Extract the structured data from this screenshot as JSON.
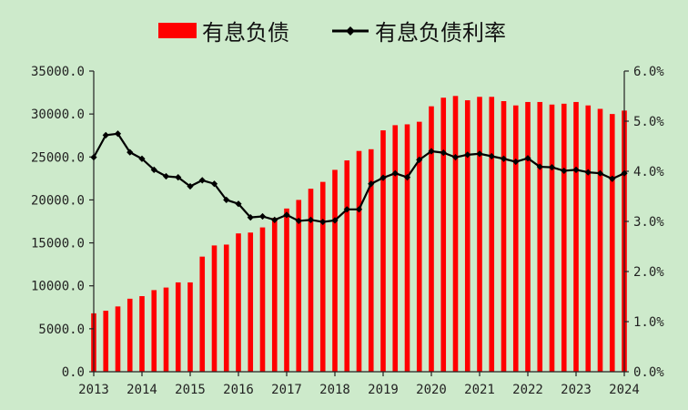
{
  "chart_data": {
    "type": "bar",
    "combo": "bar + line (dual axis)",
    "title": "",
    "xlabel": "",
    "ylabel": "",
    "legend": {
      "placement": "top-center",
      "entries": [
        {
          "name": "有息负债",
          "kind": "bar",
          "color": "#ff0000"
        },
        {
          "name": "有息负债利率",
          "kind": "line-with-diamond-markers",
          "color": "#000000"
        }
      ]
    },
    "grid": false,
    "x_tick_labels": [
      "2013",
      "2014",
      "2015",
      "2016",
      "2017",
      "2018",
      "2019",
      "2020",
      "2021",
      "2022",
      "2023",
      "2024"
    ],
    "x_range": [
      2013,
      2024
    ],
    "left_axis": {
      "ylim": [
        0,
        35000
      ],
      "tick_values": [
        0,
        5000,
        10000,
        15000,
        20000,
        25000,
        30000,
        35000
      ],
      "tick_labels": [
        "0.0",
        "5000.0",
        "10000.0",
        "15000.0",
        "20000.0",
        "25000.0",
        "30000.0",
        "35000.0"
      ]
    },
    "right_axis": {
      "ylim": [
        0,
        6
      ],
      "tick_values": [
        0,
        1,
        2,
        3,
        4,
        5,
        6
      ],
      "tick_labels": [
        "0.0%",
        "1.0%",
        "2.0%",
        "3.0%",
        "4.0%",
        "5.0%",
        "6.0%"
      ]
    },
    "x": [
      2013.0,
      2013.25,
      2013.5,
      2013.75,
      2014.0,
      2014.25,
      2014.5,
      2014.75,
      2015.0,
      2015.25,
      2015.5,
      2015.75,
      2016.0,
      2016.25,
      2016.5,
      2016.75,
      2017.0,
      2017.25,
      2017.5,
      2017.75,
      2018.0,
      2018.25,
      2018.5,
      2018.75,
      2019.0,
      2019.25,
      2019.5,
      2019.75,
      2020.0,
      2020.25,
      2020.5,
      2020.75,
      2021.0,
      2021.25,
      2021.5,
      2021.75,
      2022.0,
      2022.25,
      2022.5,
      2022.75,
      2023.0,
      2023.25,
      2023.5,
      2023.75,
      2024.0
    ],
    "series": [
      {
        "name": "有息负债",
        "type": "bar",
        "axis": "left",
        "color": "#ff0000",
        "values": [
          6800,
          7100,
          7600,
          8500,
          8800,
          9500,
          9800,
          10400,
          10400,
          13400,
          14700,
          14800,
          16100,
          16200,
          16800,
          17900,
          19000,
          20000,
          21300,
          22100,
          23500,
          24600,
          25700,
          25900,
          28100,
          28700,
          28800,
          29100,
          30900,
          31900,
          32100,
          31600,
          32000,
          32000,
          31500,
          31000,
          31400,
          31400,
          31100,
          31200,
          31400,
          31000,
          30600,
          30000,
          30400
        ]
      },
      {
        "name": "有息负债利率",
        "type": "line",
        "axis": "right",
        "color": "#000000",
        "marker": "diamond",
        "values": [
          4.28,
          4.72,
          4.75,
          4.38,
          4.25,
          4.03,
          3.9,
          3.88,
          3.7,
          3.82,
          3.75,
          3.43,
          3.35,
          3.08,
          3.1,
          3.03,
          3.13,
          3.01,
          3.03,
          2.99,
          3.02,
          3.24,
          3.24,
          3.75,
          3.87,
          3.96,
          3.88,
          4.23,
          4.4,
          4.37,
          4.28,
          4.33,
          4.35,
          4.3,
          4.25,
          4.19,
          4.26,
          4.09,
          4.08,
          4.01,
          4.03,
          3.98,
          3.96,
          3.85,
          3.96
        ]
      }
    ]
  }
}
